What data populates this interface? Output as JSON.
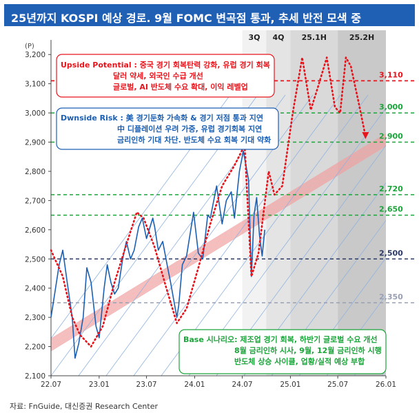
{
  "header": {
    "title": "25년까지 KOSPI 예상 경로. 9월 FOMC 변곡점 통과, 추세 반전 모색 중"
  },
  "source": "자료: FnGuide, 대신증권 Research Center",
  "colors": {
    "kospi": "#1a5fb4",
    "trend_blue": "#8fb3df",
    "trend_red": "#f0a0a0",
    "red": "#e8141c",
    "green": "#1aa53a",
    "navy": "#2b3a67",
    "gray": "#9aa0b4",
    "shade_light": "#e6e6e6",
    "shade_dark": "#c9c9c9"
  },
  "chart_data": {
    "type": "line",
    "y_unit": "(P)",
    "ylim": [
      2100,
      3250
    ],
    "yticks": [
      "2,100",
      "2,200",
      "2,300",
      "2,400",
      "2,500",
      "2,600",
      "2,700",
      "2,800",
      "2,900",
      "3,000",
      "3,100",
      "3,200"
    ],
    "ytick_values": [
      2100,
      2200,
      2300,
      2400,
      2500,
      2600,
      2700,
      2800,
      2900,
      3000,
      3100,
      3200
    ],
    "xticks": [
      "22.07",
      "23.01",
      "23.07",
      "24.01",
      "24.07",
      "25.01",
      "25.07",
      "26.01"
    ],
    "xtick_dates": [
      "2022-07-01",
      "2023-01-01",
      "2023-07-01",
      "2024-01-01",
      "2024-07-01",
      "2025-01-01",
      "2025-07-01",
      "2026-01-01"
    ],
    "periods": [
      {
        "label": "3Q",
        "start": "2024-07-01",
        "end": "2024-10-01"
      },
      {
        "label": "4Q",
        "start": "2024-10-01",
        "end": "2025-01-01"
      },
      {
        "label": "25.1H",
        "start": "2025-01-01",
        "end": "2025-07-01"
      },
      {
        "label": "25.2H",
        "start": "2025-07-01",
        "end": "2026-01-01"
      }
    ],
    "ref_lines": [
      {
        "value": 3110,
        "label": "3,110",
        "color": "red"
      },
      {
        "value": 3000,
        "label": "3,000",
        "color": "green"
      },
      {
        "value": 2900,
        "label": "2,900",
        "color": "green"
      },
      {
        "value": 2720,
        "label": "2,720",
        "color": "green"
      },
      {
        "value": 2650,
        "label": "2,650",
        "color": "green"
      },
      {
        "value": 2500,
        "label": "2,500",
        "color": "navy"
      },
      {
        "value": 2350,
        "label": "2,350",
        "color": "gray"
      }
    ],
    "series": [
      {
        "style": "solid",
        "points": [
          [
            "2022-07-01",
            2300
          ],
          [
            "2022-07-15",
            2380
          ],
          [
            "2022-08-01",
            2480
          ],
          [
            "2022-08-15",
            2530
          ],
          [
            "2022-09-01",
            2420
          ],
          [
            "2022-09-20",
            2300
          ],
          [
            "2022-10-01",
            2160
          ],
          [
            "2022-10-15",
            2210
          ],
          [
            "2022-11-01",
            2300
          ],
          [
            "2022-11-15",
            2470
          ],
          [
            "2022-12-01",
            2420
          ],
          [
            "2022-12-20",
            2270
          ],
          [
            "2023-01-01",
            2230
          ],
          [
            "2023-01-20",
            2400
          ],
          [
            "2023-02-01",
            2480
          ],
          [
            "2023-02-15",
            2420
          ],
          [
            "2023-03-01",
            2380
          ],
          [
            "2023-03-15",
            2400
          ],
          [
            "2023-04-01",
            2500
          ],
          [
            "2023-04-15",
            2560
          ],
          [
            "2023-05-01",
            2500
          ],
          [
            "2023-05-15",
            2530
          ],
          [
            "2023-06-01",
            2610
          ],
          [
            "2023-06-15",
            2640
          ],
          [
            "2023-07-01",
            2570
          ],
          [
            "2023-07-25",
            2640
          ],
          [
            "2023-08-01",
            2610
          ],
          [
            "2023-08-15",
            2530
          ],
          [
            "2023-09-01",
            2560
          ],
          [
            "2023-09-20",
            2470
          ],
          [
            "2023-10-01",
            2420
          ],
          [
            "2023-10-25",
            2300
          ],
          [
            "2023-11-01",
            2340
          ],
          [
            "2023-11-15",
            2480
          ],
          [
            "2023-12-01",
            2510
          ],
          [
            "2023-12-28",
            2660
          ],
          [
            "2024-01-15",
            2520
          ],
          [
            "2024-02-01",
            2500
          ],
          [
            "2024-02-20",
            2650
          ],
          [
            "2024-03-01",
            2640
          ],
          [
            "2024-03-25",
            2750
          ],
          [
            "2024-04-15",
            2620
          ],
          [
            "2024-05-01",
            2700
          ],
          [
            "2024-05-20",
            2730
          ],
          [
            "2024-06-01",
            2640
          ],
          [
            "2024-06-20",
            2800
          ],
          [
            "2024-07-05",
            2870
          ],
          [
            "2024-07-15",
            2820
          ],
          [
            "2024-07-25",
            2770
          ],
          [
            "2024-08-05",
            2440
          ],
          [
            "2024-08-15",
            2650
          ],
          [
            "2024-08-25",
            2710
          ],
          [
            "2024-09-05",
            2580
          ],
          [
            "2024-09-15",
            2510
          ],
          [
            "2024-09-25",
            2600
          ]
        ]
      },
      {
        "style": "dotted",
        "points": [
          [
            "2022-07-01",
            2530
          ],
          [
            "2022-08-15",
            2440
          ],
          [
            "2022-09-20",
            2300
          ],
          [
            "2022-10-20",
            2240
          ],
          [
            "2022-12-01",
            2200
          ],
          [
            "2023-01-15",
            2270
          ],
          [
            "2023-03-01",
            2420
          ],
          [
            "2023-04-15",
            2550
          ],
          [
            "2023-05-25",
            2660
          ],
          [
            "2023-06-20",
            2640
          ],
          [
            "2023-08-01",
            2540
          ],
          [
            "2023-09-15",
            2400
          ],
          [
            "2023-10-25",
            2280
          ],
          [
            "2023-12-01",
            2330
          ],
          [
            "2024-01-15",
            2470
          ],
          [
            "2024-03-01",
            2620
          ],
          [
            "2024-04-15",
            2750
          ],
          [
            "2024-06-01",
            2820
          ],
          [
            "2024-07-10",
            2890
          ],
          [
            "2024-08-05",
            2440
          ],
          [
            "2024-09-01",
            2520
          ],
          [
            "2024-10-10",
            2800
          ],
          [
            "2024-11-01",
            2720
          ],
          [
            "2024-12-01",
            2750
          ],
          [
            "2025-01-10",
            3000
          ],
          [
            "2025-02-15",
            3190
          ],
          [
            "2025-03-20",
            3010
          ],
          [
            "2025-04-20",
            3100
          ],
          [
            "2025-05-20",
            3190
          ],
          [
            "2025-06-20",
            3020
          ],
          [
            "2025-07-10",
            3000
          ],
          [
            "2025-08-01",
            3190
          ],
          [
            "2025-08-20",
            3160
          ],
          [
            "2025-09-20",
            3030
          ],
          [
            "2025-10-15",
            2920
          ]
        ]
      }
    ],
    "annotations": [
      {
        "id": "upside",
        "lines": [
          "Upside Potential : 중국 경기 회복탄력 강화, 유럽 경기 회복",
          "달러 약세, 외국인 수급 개선",
          "글로벌, AI 반도체 수요 확대, 이익 레벨업"
        ]
      },
      {
        "id": "downside",
        "lines": [
          "Dwnside Risk : 美 경기둔화 가속화 & 경기 저점 통과 지연",
          "中 디플레이션 우려 가중, 유럽 경기회복 지연",
          "금리인하 기대 차단. 반도체 수요 회복 기대 약화"
        ]
      },
      {
        "id": "base",
        "lines": [
          "Base 시나리오: 제조업 경기 회복, 하반기 글로벌 수요 개선",
          "8월 금리인하 시사, 9월, 12월 금리인하 시행",
          "반도체 상승 사이클, 업황/실적 예상 부합"
        ]
      }
    ]
  }
}
